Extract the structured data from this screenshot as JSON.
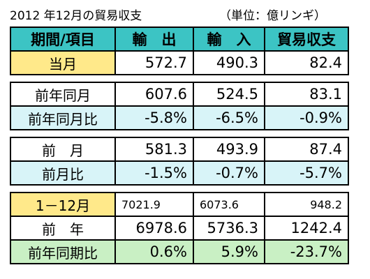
{
  "title": {
    "main": "2012 年12月の貿易収支",
    "unit": "（単位：億リンギ）"
  },
  "header": {
    "col1": "期間/項目",
    "col2": "輸　出",
    "col3": "輸　入",
    "col4": "貿易収支"
  },
  "rows": {
    "current": {
      "label": "当月",
      "export": "572.7",
      "import": "490.3",
      "balance": "82.4"
    },
    "prev_year_same_month": {
      "label": "前年同月",
      "export": "607.6",
      "import": "524.5",
      "balance": "83.1"
    },
    "prev_year_same_month_ratio": {
      "label": "前年同月比",
      "export": "-5.8%",
      "import": "-6.5%",
      "balance": "-0.9%"
    },
    "prev_month": {
      "label": "前　月",
      "export": "581.3",
      "import": "493.9",
      "balance": "87.4"
    },
    "prev_month_ratio": {
      "label": "前月比",
      "export": "-1.5%",
      "import": "-0.7%",
      "balance": "-5.7%"
    },
    "jan_dec": {
      "label": "1－12月",
      "export": "7021.9",
      "import": "6073.6",
      "balance": "948.2"
    },
    "prev_year": {
      "label": "前　年",
      "export": "6978.6",
      "import": "5736.3",
      "balance": "1242.4"
    },
    "prev_year_period_ratio": {
      "label": "前年同期比",
      "export": "0.6%",
      "import": "5.9%",
      "balance": "-23.7%"
    }
  },
  "colors": {
    "header": "#3cc4c4",
    "yellow": "#ffe98a",
    "light_blue": "#d8f4f8",
    "green": "#c9f0c4"
  }
}
